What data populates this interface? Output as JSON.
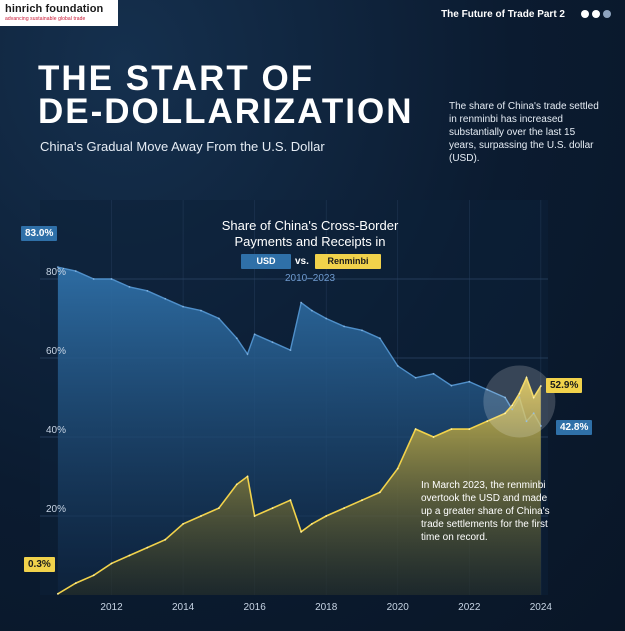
{
  "header": {
    "logo_name": "hinrich foundation",
    "logo_tagline": "advancing sustainable global trade",
    "series_label": "The Future of Trade   Part 2"
  },
  "hero": {
    "title_line1": "THE START OF",
    "title_line2": "DE-DOLLARIZATION",
    "subtitle": "China's Gradual Move Away From the U.S. Dollar",
    "intro": "The share of China's trade settled in renminbi has increased substantially over the last 15 years, surpassing the U.S. dollar (USD)."
  },
  "colors": {
    "usd": "#2f70a8",
    "renminbi": "#f1d24b",
    "background": "#0b1b30"
  },
  "chart_data": {
    "type": "area",
    "title_line1": "Share of China's Cross-Border",
    "title_line2": "Payments and Receipts in",
    "legend_usd": "USD",
    "legend_vs": "vs.",
    "legend_renminbi": "Renminbi",
    "period": "2010–2023",
    "x": [
      2010.5,
      2011.0,
      2011.5,
      2012.0,
      2012.5,
      2013.0,
      2013.5,
      2014.0,
      2014.5,
      2015.0,
      2015.5,
      2015.8,
      2016.0,
      2016.5,
      2017.0,
      2017.3,
      2017.6,
      2018.0,
      2018.5,
      2019.0,
      2019.5,
      2020.0,
      2020.5,
      2021.0,
      2021.5,
      2022.0,
      2022.5,
      2023.0,
      2023.2,
      2023.4,
      2023.6,
      2023.8,
      2024.0
    ],
    "series": [
      {
        "name": "USD",
        "values": [
          83.0,
          82,
          80,
          80,
          78,
          77,
          75,
          73,
          72,
          70,
          65,
          61,
          66,
          64,
          62,
          74,
          72,
          70,
          68,
          67,
          65,
          58,
          55,
          56,
          53,
          54,
          52,
          50,
          47,
          50,
          44,
          46,
          42.8
        ]
      },
      {
        "name": "Renminbi",
        "values": [
          0.3,
          3,
          5,
          8,
          10,
          12,
          14,
          18,
          20,
          22,
          28,
          30,
          20,
          22,
          24,
          16,
          18,
          20,
          22,
          24,
          26,
          32,
          42,
          40,
          42,
          42,
          44,
          46,
          48,
          51,
          55,
          50,
          52.9
        ]
      }
    ],
    "x_ticks": [
      "2012",
      "2014",
      "2016",
      "2018",
      "2020",
      "2022",
      "2024"
    ],
    "x_tick_values": [
      2012,
      2014,
      2016,
      2018,
      2020,
      2022,
      2024
    ],
    "y_ticks": [
      "80%",
      "60%",
      "40%",
      "20%"
    ],
    "y_tick_values": [
      80,
      60,
      40,
      20
    ],
    "xlim": [
      2010.0,
      2024.2
    ],
    "ylim": [
      0,
      100
    ],
    "grid": true,
    "callouts": {
      "usd_start": "83.0%",
      "renminbi_start": "0.3%",
      "renminbi_end": "52.9%",
      "usd_end": "42.8%"
    },
    "annotation": "In March 2023, the renminbi overtook the USD and made up a greater share of China's trade settlements for the first time on record."
  }
}
